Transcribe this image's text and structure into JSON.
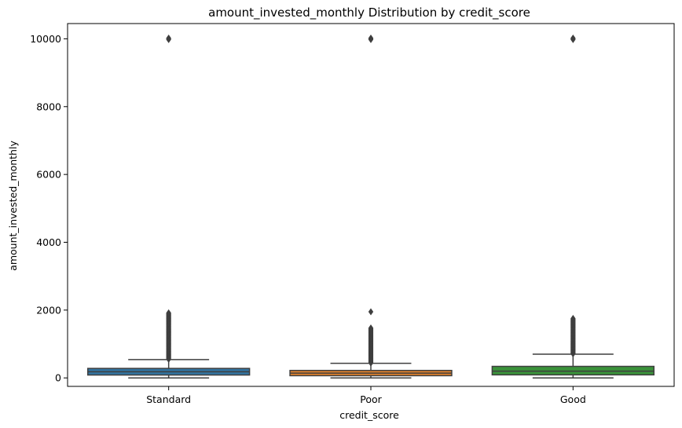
{
  "chart_data": {
    "type": "box",
    "title": "amount_invested_monthly Distribution by credit_score",
    "xlabel": "credit_score",
    "ylabel": "amount_invested_monthly",
    "ylim": [
      -250,
      10450
    ],
    "yticks": [
      0,
      2000,
      4000,
      6000,
      8000,
      10000
    ],
    "grid": false,
    "categories": [
      "Standard",
      "Poor",
      "Good"
    ],
    "boxes": [
      {
        "category": "Standard",
        "color": "#3274a1",
        "whisker_low": 0,
        "q1": 85,
        "median": 180,
        "q3": 280,
        "whisker_high": 540,
        "outliers_range": [
          540,
          1920
        ],
        "outlier_cap": 10000
      },
      {
        "category": "Poor",
        "color": "#e1812c",
        "whisker_low": 0,
        "q1": 65,
        "median": 140,
        "q3": 220,
        "whisker_high": 430,
        "outliers_range": [
          430,
          1480
        ],
        "extra_outliers": [
          1950
        ],
        "outlier_cap": 10000
      },
      {
        "category": "Good",
        "color": "#3a923a",
        "whisker_low": 0,
        "q1": 90,
        "median": 200,
        "q3": 340,
        "whisker_high": 700,
        "outliers_range": [
          700,
          1760
        ],
        "outlier_cap": 10000
      }
    ]
  }
}
